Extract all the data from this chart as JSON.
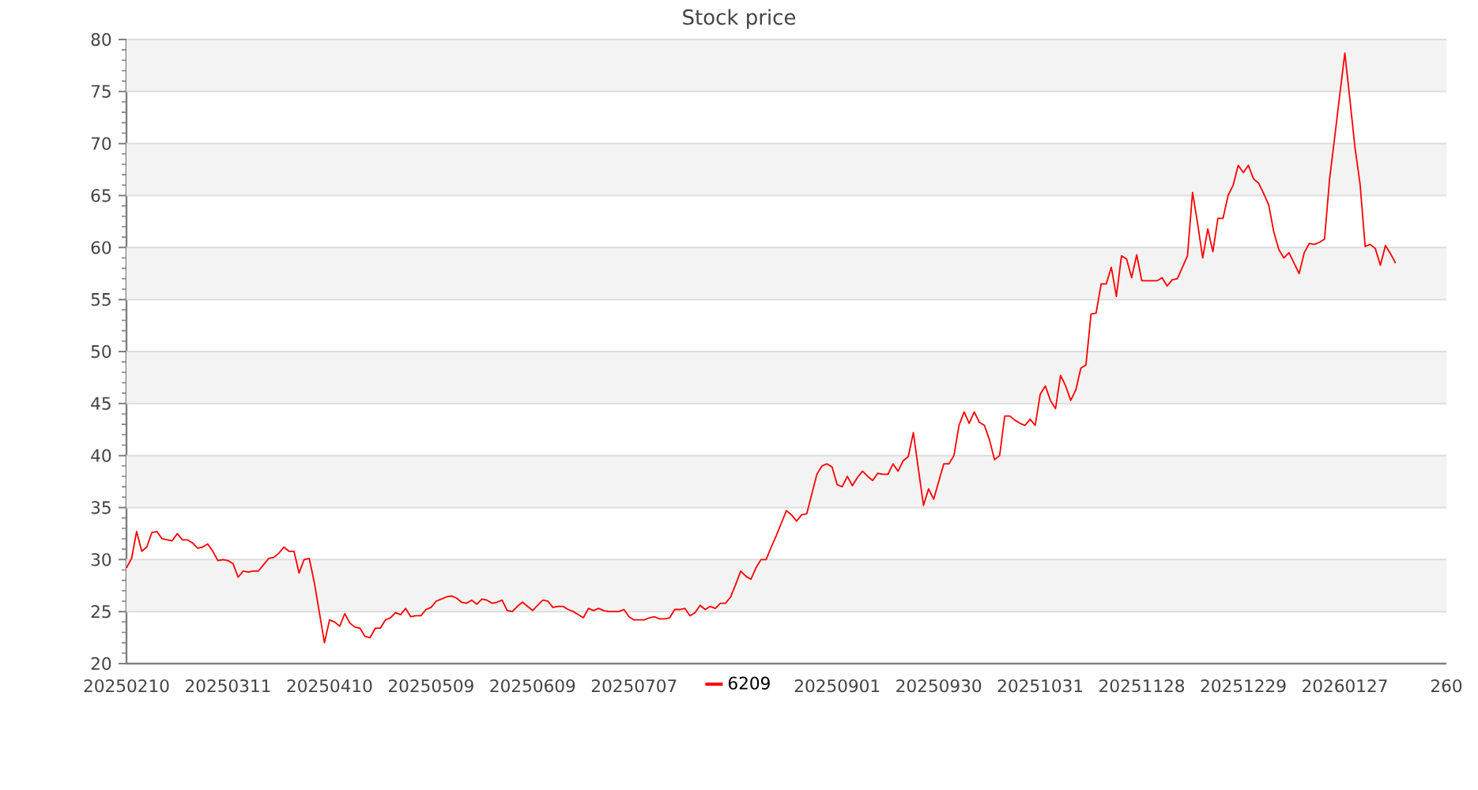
{
  "chart_data": {
    "type": "line",
    "title": "Stock price",
    "categories": [
      "20250210",
      null,
      null,
      null,
      null,
      null,
      null,
      null,
      null,
      null,
      null,
      null,
      null,
      null,
      null,
      null,
      null,
      null,
      null,
      null,
      "20250311",
      null,
      null,
      null,
      null,
      null,
      null,
      null,
      null,
      null,
      null,
      null,
      null,
      null,
      null,
      null,
      null,
      null,
      null,
      null,
      "20250410",
      null,
      null,
      null,
      null,
      null,
      null,
      null,
      null,
      null,
      null,
      null,
      null,
      null,
      null,
      null,
      null,
      null,
      null,
      null,
      "20250509",
      null,
      null,
      null,
      null,
      null,
      null,
      null,
      null,
      null,
      null,
      null,
      null,
      null,
      null,
      null,
      null,
      null,
      null,
      null,
      "20250609",
      null,
      null,
      null,
      null,
      null,
      null,
      null,
      null,
      null,
      null,
      null,
      null,
      null,
      null,
      null,
      null,
      null,
      null,
      null,
      "20250707",
      null,
      null,
      null,
      null,
      null,
      null,
      null,
      null,
      null,
      null,
      null,
      null,
      null,
      null,
      null,
      null,
      null,
      null,
      null,
      null,
      null,
      null,
      null,
      null,
      null,
      null,
      null,
      null,
      null,
      null,
      null,
      null,
      null,
      null,
      null,
      null,
      null,
      null,
      null,
      "20250901",
      null,
      null,
      null,
      null,
      null,
      null,
      null,
      null,
      null,
      null,
      null,
      null,
      null,
      null,
      null,
      null,
      null,
      null,
      null,
      "20250930",
      null,
      null,
      null,
      null,
      null,
      null,
      null,
      null,
      null,
      null,
      null,
      null,
      null,
      null,
      null,
      null,
      null,
      null,
      null,
      "20251031",
      null,
      null,
      null,
      null,
      null,
      null,
      null,
      null,
      null,
      null,
      null,
      null,
      null,
      null,
      null,
      null,
      null,
      null,
      null,
      "20251128",
      null,
      null,
      null,
      null,
      null,
      null,
      null,
      null,
      null,
      null,
      null,
      null,
      null,
      null,
      null,
      null,
      null,
      null,
      null,
      "20251229",
      null,
      null,
      null,
      null,
      null,
      null,
      null,
      null,
      null,
      null,
      null,
      null,
      null,
      null,
      null,
      null,
      null,
      null,
      null,
      "20260127",
      null,
      null,
      null,
      null,
      null,
      null,
      null,
      null,
      null,
      null,
      null,
      null,
      null,
      null,
      null,
      null,
      null,
      null,
      null,
      "260"
    ],
    "ylim": [
      20,
      80
    ],
    "yticks": [
      20,
      25,
      30,
      35,
      40,
      45,
      50,
      55,
      60,
      65,
      70,
      75,
      80
    ],
    "grid": "y",
    "legend": "bottom",
    "series": [
      {
        "name": "6209",
        "color": "#ff0000",
        "values": [
          29.2,
          30.1,
          32.7,
          30.8,
          31.2,
          32.6,
          32.7,
          32.0,
          31.9,
          31.8,
          32.5,
          31.9,
          31.9,
          31.6,
          31.1,
          31.2,
          31.5,
          30.8,
          29.9,
          30.0,
          29.9,
          29.6,
          28.3,
          28.9,
          28.8,
          28.9,
          28.9,
          29.5,
          30.1,
          30.2,
          30.6,
          31.2,
          30.8,
          30.8,
          28.7,
          30.0,
          30.1,
          27.8,
          24.9,
          22.0,
          24.2,
          24.0,
          23.6,
          24.8,
          23.9,
          23.5,
          23.4,
          22.6,
          22.5,
          23.4,
          23.4,
          24.2,
          24.4,
          24.9,
          24.7,
          25.3,
          24.5,
          24.6,
          24.6,
          25.2,
          25.4,
          26.0,
          26.2,
          26.4,
          26.5,
          26.3,
          25.9,
          25.8,
          26.1,
          25.7,
          26.2,
          26.1,
          25.8,
          25.9,
          26.1,
          25.1,
          25.0,
          25.5,
          25.9,
          25.5,
          25.1,
          25.6,
          26.1,
          26.0,
          25.4,
          25.5,
          25.5,
          25.2,
          25.0,
          24.7,
          24.4,
          25.3,
          25.1,
          25.3,
          25.1,
          25.0,
          25.0,
          25.0,
          25.2,
          24.5,
          24.2,
          24.2,
          24.2,
          24.4,
          24.5,
          24.3,
          24.3,
          24.4,
          25.2,
          25.2,
          25.3,
          24.6,
          24.9,
          25.6,
          25.2,
          25.5,
          25.3,
          25.8,
          25.8,
          26.4,
          27.6,
          28.9,
          28.4,
          28.1,
          29.2,
          30.0,
          30.0,
          31.2,
          32.3,
          33.5,
          34.7,
          34.3,
          33.7,
          34.3,
          34.4,
          36.3,
          38.2,
          39.0,
          39.2,
          38.9,
          37.2,
          37.0,
          38.0,
          37.1,
          37.9,
          38.5,
          38.0,
          37.6,
          38.3,
          38.2,
          38.2,
          39.2,
          38.5,
          39.5,
          39.9,
          42.2,
          38.7,
          35.2,
          36.8,
          35.8,
          37.5,
          39.2,
          39.2,
          40.0,
          42.9,
          44.2,
          43.1,
          44.2,
          43.2,
          42.9,
          41.5,
          39.6,
          40.0,
          43.8,
          43.8,
          43.4,
          43.1,
          42.9,
          43.5,
          42.9,
          45.9,
          46.7,
          45.3,
          44.5,
          47.7,
          46.7,
          45.3,
          46.3,
          48.4,
          48.7,
          53.6,
          53.7,
          56.5,
          56.5,
          58.1,
          55.3,
          59.2,
          58.9,
          57.1,
          59.3,
          56.8,
          56.8,
          56.8,
          56.8,
          57.1,
          56.3,
          56.9,
          57.0,
          58.1,
          59.2,
          65.3,
          62.3,
          59.0,
          61.8,
          59.6,
          62.8,
          62.8,
          65.0,
          66.0,
          67.9,
          67.2,
          67.9,
          66.6,
          66.2,
          65.2,
          64.1,
          61.5,
          59.8,
          59.0,
          59.5,
          58.5,
          57.5,
          59.5,
          60.4,
          60.3,
          60.5,
          60.8,
          66.6,
          70.6,
          74.7,
          78.7,
          74.2,
          69.6,
          66.1,
          60.1,
          60.3,
          59.9,
          58.3,
          60.2,
          59.4,
          58.5,
          null,
          null,
          null,
          null,
          null,
          null,
          null,
          null,
          null,
          null
        ]
      }
    ]
  }
}
